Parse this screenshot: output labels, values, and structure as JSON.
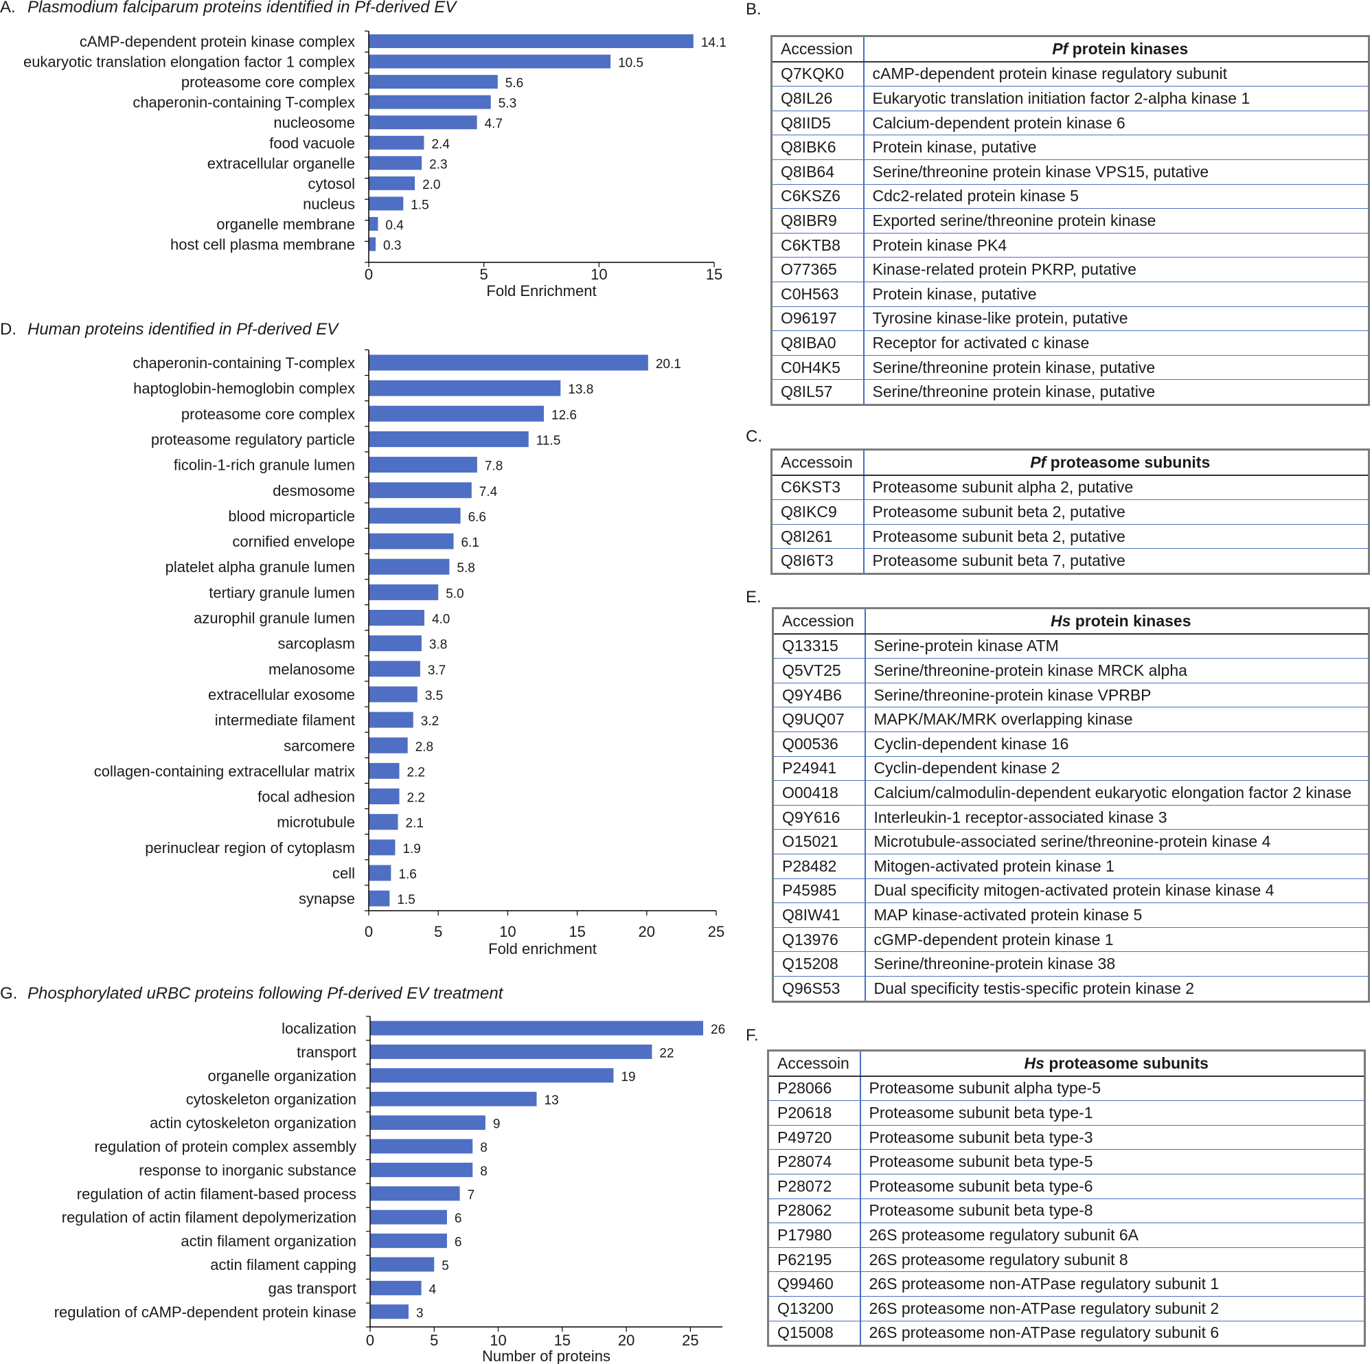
{
  "colors": {
    "bar": "#4f6fc4",
    "axis": "#000000",
    "table_border": "#7a7a7a",
    "grid_line": "#4a6fc0"
  },
  "chart_data": [
    {
      "type": "bar",
      "orientation": "horizontal",
      "panel": "A.",
      "title": "Plasmodium falciparum proteins identified in Pf-derived EV",
      "xlabel": "Fold Enrichment",
      "xlim": [
        0,
        15
      ],
      "xticks": [
        0,
        5,
        10,
        15
      ],
      "categories": [
        "cAMP-dependent protein kinase complex",
        "eukaryotic translation elongation factor 1 complex",
        "proteasome core complex",
        "chaperonin-containing T-complex",
        "nucleosome",
        "food vacuole",
        "extracellular organelle",
        "cytosol",
        "nucleus",
        "organelle membrane",
        "host cell plasma membrane"
      ],
      "values": [
        14.1,
        10.5,
        5.6,
        5.3,
        4.7,
        2.4,
        2.3,
        2.0,
        1.5,
        0.4,
        0.3
      ],
      "value_labels": [
        "14.1",
        "10.5",
        "5.6",
        "5.3",
        "4.7",
        "2.4",
        "2.3",
        "2.0",
        "1.5",
        "0.4",
        "0.3"
      ]
    },
    {
      "type": "bar",
      "orientation": "horizontal",
      "panel": "D.",
      "title": "Human proteins identified in Pf-derived EV",
      "xlabel": "Fold enrichment",
      "xlim": [
        0,
        25
      ],
      "xticks": [
        0,
        5,
        10,
        15,
        20,
        25
      ],
      "categories": [
        "chaperonin-containing T-complex",
        "haptoglobin-hemoglobin complex",
        "proteasome core complex",
        "proteasome regulatory particle",
        "ficolin-1-rich granule lumen",
        "desmosome",
        "blood microparticle",
        "cornified envelope",
        "platelet alpha granule lumen",
        "tertiary granule lumen",
        "azurophil granule lumen",
        "sarcoplasm",
        "melanosome",
        "extracellular exosome",
        "intermediate filament",
        "sarcomere",
        "collagen-containing extracellular matrix",
        "focal adhesion",
        "microtubule",
        "perinuclear region of cytoplasm",
        "cell",
        "synapse"
      ],
      "values": [
        20.1,
        13.8,
        12.6,
        11.5,
        7.8,
        7.4,
        6.6,
        6.1,
        5.8,
        5.0,
        4.0,
        3.8,
        3.7,
        3.5,
        3.2,
        2.8,
        2.2,
        2.2,
        2.1,
        1.9,
        1.6,
        1.5
      ],
      "value_labels": [
        "20.1",
        "13.8",
        "12.6",
        "11.5",
        "7.8",
        "7.4",
        "6.6",
        "6.1",
        "5.8",
        "5.0",
        "4.0",
        "3.8",
        "3.7",
        "3.5",
        "3.2",
        "2.8",
        "2.2",
        "2.2",
        "2.1",
        "1.9",
        "1.6",
        "1.5"
      ]
    },
    {
      "type": "bar",
      "orientation": "horizontal",
      "panel": "G.",
      "title": "Phosphorylated uRBC proteins following Pf-derived EV treatment",
      "xlabel": "Number of proteins",
      "xlim": [
        0,
        27.5
      ],
      "xticks": [
        0,
        5,
        10,
        15,
        20,
        25
      ],
      "categories": [
        "localization",
        "transport",
        "organelle organization",
        "cytoskeleton organization",
        "actin cytoskeleton organization",
        "regulation of protein complex assembly",
        "response to inorganic substance",
        "regulation of actin filament-based process",
        "regulation of actin filament depolymerization",
        "actin filament organization",
        "actin filament capping",
        "gas transport",
        "regulation of cAMP-dependent protein kinase"
      ],
      "values": [
        26,
        22,
        19,
        13,
        9,
        8,
        8,
        7,
        6,
        6,
        5,
        4,
        3
      ],
      "value_labels": [
        "26",
        "22",
        "19",
        "13",
        "9",
        "8",
        "8",
        "7",
        "6",
        "6",
        "5",
        "4",
        "3"
      ]
    }
  ],
  "tables": {
    "b": {
      "label": "B.",
      "header_acc": "Accession",
      "header_prefix": "Pf",
      "header_rest": " protein kinases",
      "rows": [
        [
          "Q7KQK0",
          "cAMP-dependent protein kinase regulatory subunit"
        ],
        [
          "Q8IL26",
          "Eukaryotic translation initiation factor 2-alpha kinase 1"
        ],
        [
          "Q8IID5",
          "Calcium-dependent protein kinase 6"
        ],
        [
          "Q8IBK6",
          "Protein kinase, putative"
        ],
        [
          "Q8IB64",
          "Serine/threonine protein kinase VPS15, putative"
        ],
        [
          "C6KSZ6",
          "Cdc2-related protein kinase 5"
        ],
        [
          "Q8IBR9",
          "Exported serine/threonine protein kinase"
        ],
        [
          "C6KTB8",
          "Protein kinase PK4"
        ],
        [
          "O77365",
          "Kinase-related protein PKRP, putative"
        ],
        [
          "C0H563",
          "Protein kinase, putative"
        ],
        [
          "O96197",
          "Tyrosine kinase-like protein, putative"
        ],
        [
          "Q8IBA0",
          "Receptor for activated c kinase"
        ],
        [
          "C0H4K5",
          "Serine/threonine protein kinase, putative"
        ],
        [
          "Q8IL57",
          "Serine/threonine protein kinase, putative"
        ]
      ]
    },
    "c": {
      "label": "C.",
      "header_acc": "Accessoin",
      "header_prefix": "Pf",
      "header_rest": " proteasome subunits",
      "rows": [
        [
          "C6KST3",
          "Proteasome subunit alpha 2, putative"
        ],
        [
          "Q8IKC9",
          "Proteasome subunit beta 2, putative"
        ],
        [
          "Q8I261",
          "Proteasome subunit beta 2, putative"
        ],
        [
          "Q8I6T3",
          "Proteasome subunit beta 7, putative"
        ]
      ]
    },
    "e": {
      "label": "E.",
      "header_acc": "Accession",
      "header_prefix": "Hs",
      "header_rest": " protein kinases",
      "rows": [
        [
          "Q13315",
          "Serine-protein kinase ATM"
        ],
        [
          "Q5VT25",
          "Serine/threonine-protein kinase MRCK alpha"
        ],
        [
          "Q9Y4B6",
          "Serine/threonine-protein kinase VPRBP"
        ],
        [
          "Q9UQ07",
          "MAPK/MAK/MRK overlapping kinase"
        ],
        [
          "Q00536",
          "Cyclin-dependent kinase 16"
        ],
        [
          "P24941",
          "Cyclin-dependent kinase 2"
        ],
        [
          "O00418",
          "Calcium/calmodulin-dependent eukaryotic elongation factor 2 kinase"
        ],
        [
          "Q9Y616",
          "Interleukin-1 receptor-associated kinase 3"
        ],
        [
          "O15021",
          "Microtubule-associated serine/threonine-protein kinase 4"
        ],
        [
          "P28482",
          "Mitogen-activated protein kinase 1"
        ],
        [
          "P45985",
          "Dual specificity mitogen-activated protein kinase kinase 4"
        ],
        [
          "Q8IW41",
          "MAP kinase-activated protein kinase 5"
        ],
        [
          "Q13976",
          "cGMP-dependent protein kinase 1"
        ],
        [
          "Q15208",
          "Serine/threonine-protein kinase 38"
        ],
        [
          "Q96S53",
          "Dual specificity testis-specific protein kinase 2"
        ]
      ]
    },
    "f": {
      "label": "F.",
      "header_acc": "Accessoin",
      "header_prefix": "Hs",
      "header_rest": " proteasome subunits",
      "rows": [
        [
          "P28066",
          "Proteasome subunit alpha type-5"
        ],
        [
          "P20618",
          "Proteasome subunit beta type-1"
        ],
        [
          "P49720",
          "Proteasome subunit beta type-3"
        ],
        [
          "P28074",
          "Proteasome subunit beta type-5"
        ],
        [
          "P28072",
          "Proteasome subunit beta type-6"
        ],
        [
          "P28062",
          "Proteasome subunit beta type-8"
        ],
        [
          "P17980",
          "26S proteasome regulatory subunit 6A"
        ],
        [
          "P62195",
          "26S proteasome regulatory subunit 8"
        ],
        [
          "Q99460",
          "26S proteasome non-ATPase regulatory subunit 1"
        ],
        [
          "Q13200",
          "26S proteasome non-ATPase regulatory subunit 2"
        ],
        [
          "Q15008",
          "26S proteasome non-ATPase regulatory subunit 6"
        ]
      ]
    }
  }
}
